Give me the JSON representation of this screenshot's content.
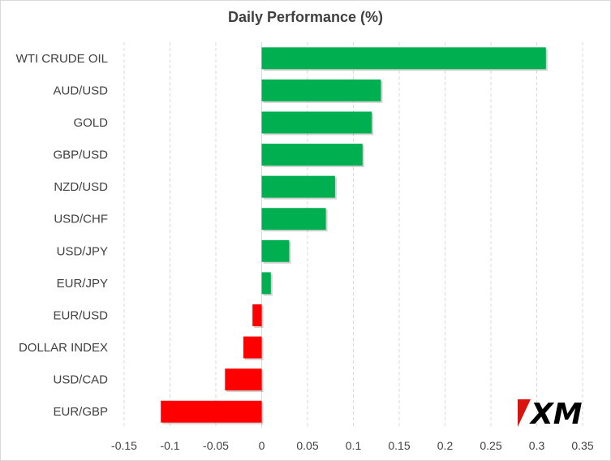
{
  "chart_data": {
    "type": "bar",
    "orientation": "horizontal",
    "title": "Daily Performance (%)",
    "xlabel": "",
    "ylabel": "",
    "categories": [
      "WTI CRUDE OIL",
      "AUD/USD",
      "GOLD",
      "GBP/USD",
      "NZD/USD",
      "USD/CHF",
      "USD/JPY",
      "EUR/JPY",
      "EUR/USD",
      "DOLLAR INDEX",
      "USD/CAD",
      "EUR/GBP"
    ],
    "values": [
      0.31,
      0.13,
      0.12,
      0.11,
      0.08,
      0.07,
      0.03,
      0.01,
      -0.01,
      -0.02,
      -0.04,
      -0.11
    ],
    "xlim": [
      -0.15,
      0.35
    ],
    "xticks": [
      "-0.15",
      "-0.1",
      "-0.05",
      "0",
      "0.05",
      "0.1",
      "0.15",
      "0.2",
      "0.25",
      "0.3",
      "0.35"
    ],
    "grid": "vertical-dashed",
    "positive_color": "#00b050",
    "negative_color": "#ff0000"
  },
  "logo": {
    "text": "XM",
    "icon": "xm-logo"
  }
}
